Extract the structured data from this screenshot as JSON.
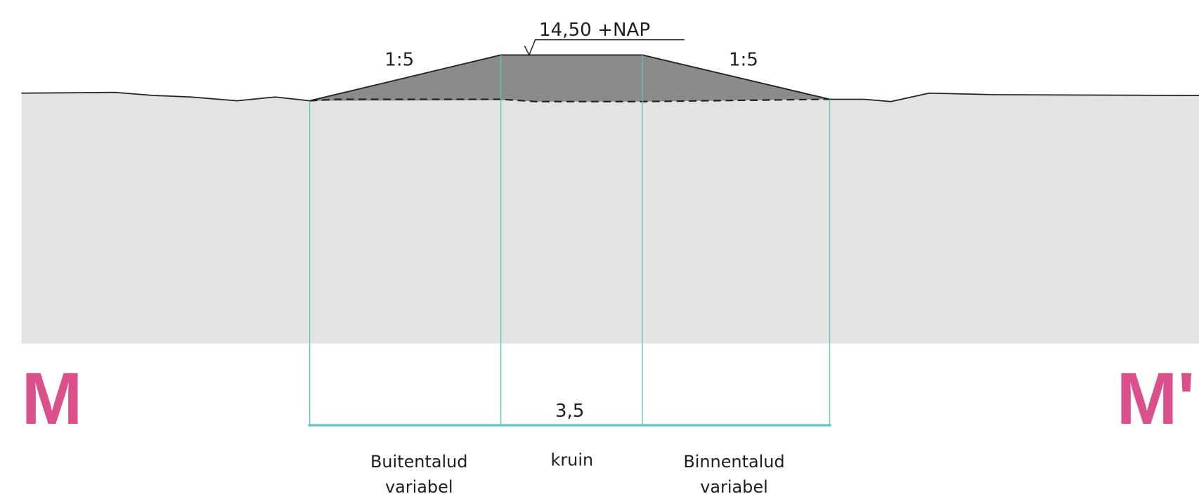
{
  "level": "14,50 +NAP",
  "slopes": [
    "1:5",
    "1:5"
  ],
  "section": [
    "M",
    "M'"
  ],
  "width": "3,5",
  "zones": [
    {
      "name": "Buitentalud",
      "note": "variabel"
    },
    {
      "name": "kruin"
    },
    {
      "name": "Binnentalud",
      "note": "variabel"
    }
  ]
}
